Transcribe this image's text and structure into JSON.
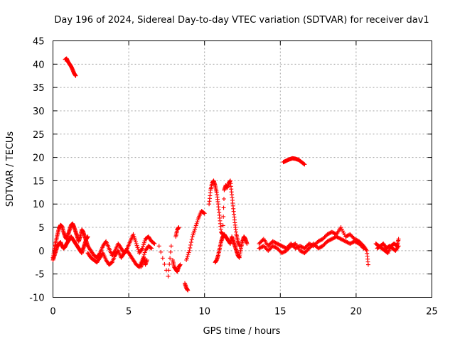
{
  "chart_data": {
    "type": "scatter",
    "title": "Day 196 of 2024, Sidereal Day-to-day VTEC variation (SDTVAR) for receiver dav1",
    "xlabel": "GPS time / hours",
    "ylabel": "SDTVAR / TECUs",
    "xlim": [
      0,
      25
    ],
    "ylim": [
      -10,
      45
    ],
    "xticks": [
      0,
      5,
      10,
      15,
      20,
      25
    ],
    "yticks": [
      -10,
      -5,
      0,
      5,
      10,
      15,
      20,
      25,
      30,
      35,
      40,
      45
    ],
    "grid": true,
    "marker": "+",
    "series": [
      {
        "name": "SDTVAR",
        "color": "#ff0000",
        "segments": [
          {
            "x": [
              0.0,
              0.1,
              0.2,
              0.3,
              0.4,
              0.5,
              0.6,
              0.7,
              0.8,
              0.9,
              1.0,
              1.1,
              1.2,
              1.3,
              1.4,
              1.5,
              1.6,
              1.7,
              1.8,
              1.9,
              2.0,
              2.1,
              2.2,
              2.3
            ],
            "y": [
              -1.5,
              0.5,
              2.0,
              3.5,
              4.8,
              5.5,
              5.2,
              4.0,
              3.0,
              2.5,
              3.5,
              4.5,
              5.5,
              5.8,
              5.0,
              4.0,
              3.0,
              2.0,
              3.0,
              4.5,
              4.0,
              3.0,
              2.0,
              1.0
            ]
          },
          {
            "x": [
              0.0,
              0.1,
              0.2,
              0.3,
              0.4,
              0.5,
              0.6,
              0.7,
              0.8,
              0.9,
              1.0,
              1.1,
              1.2,
              1.3,
              1.4,
              1.5,
              1.6,
              1.7,
              1.8,
              1.9,
              2.0,
              2.1,
              2.2,
              2.3
            ],
            "y": [
              -2.0,
              -1.0,
              0.0,
              1.0,
              1.5,
              1.8,
              1.0,
              0.5,
              0.8,
              1.5,
              2.0,
              2.5,
              3.0,
              2.5,
              2.0,
              1.5,
              1.0,
              0.5,
              0.0,
              -0.5,
              0.5,
              1.5,
              2.5,
              3.0
            ]
          },
          {
            "x": [
              0.8,
              0.9,
              1.0,
              1.1,
              1.2,
              1.3,
              1.4,
              1.5
            ],
            "y": [
              41.0,
              41.2,
              40.5,
              40.0,
              39.5,
              38.8,
              38.0,
              37.5
            ]
          },
          {
            "x": [
              2.3,
              2.5,
              2.7,
              2.9,
              3.1,
              3.3,
              3.5,
              3.7,
              3.9,
              4.1,
              4.3,
              4.5,
              4.7,
              4.9,
              5.1,
              5.3,
              5.5,
              5.7,
              5.9,
              6.1,
              6.3,
              6.5,
              6.7
            ],
            "y": [
              1.0,
              0.0,
              -1.0,
              -1.5,
              -0.5,
              1.0,
              2.0,
              0.5,
              -1.0,
              0.0,
              1.5,
              0.5,
              -0.5,
              0.5,
              2.0,
              3.5,
              1.5,
              -0.5,
              0.5,
              2.5,
              3.0,
              2.0,
              1.5
            ]
          },
          {
            "x": [
              2.3,
              2.5,
              2.7,
              2.9,
              3.1,
              3.3,
              3.5,
              3.7,
              3.9,
              4.1,
              4.3,
              4.5,
              4.7,
              4.9,
              5.1,
              5.3,
              5.5,
              5.7,
              5.9,
              6.1,
              6.3,
              6.5
            ],
            "y": [
              -0.5,
              -1.5,
              -2.0,
              -2.5,
              -1.5,
              -0.5,
              -2.0,
              -3.0,
              -2.5,
              -1.0,
              0.0,
              -1.5,
              -0.5,
              0.0,
              -1.0,
              -2.0,
              -3.0,
              -3.5,
              -2.0,
              0.0,
              1.0,
              0.5
            ]
          },
          {
            "x": [
              5.8,
              5.9,
              6.0,
              6.1,
              6.2
            ],
            "y": [
              -3.5,
              -2.5,
              -1.5,
              -3.0,
              -2.0
            ]
          },
          {
            "x": [
              7.0,
              7.6,
              7.8
            ],
            "y": [
              1.0,
              -5.5,
              1.0
            ]
          },
          {
            "x": [
              7.9,
              8.0,
              8.1,
              8.2,
              8.3,
              8.4
            ],
            "y": [
              -2.0,
              -3.5,
              -4.0,
              -4.5,
              -3.5,
              -3.0
            ]
          },
          {
            "x": [
              8.1,
              8.2,
              8.3
            ],
            "y": [
              3.0,
              4.5,
              5.0
            ]
          },
          {
            "x": [
              8.7,
              8.8,
              8.9
            ],
            "y": [
              -7.0,
              -8.0,
              -8.5
            ]
          },
          {
            "x": [
              8.8,
              9.0,
              9.2,
              9.4,
              9.6,
              9.8,
              10.0
            ],
            "y": [
              -2.0,
              0.0,
              3.0,
              5.0,
              7.0,
              8.5,
              8.0
            ]
          },
          {
            "x": [
              10.3,
              10.4,
              10.5,
              10.6,
              10.7,
              10.8,
              10.9,
              11.0,
              11.1,
              11.2,
              11.3,
              11.4,
              11.5,
              11.6,
              11.7,
              11.8,
              11.9,
              12.0,
              12.1,
              12.2,
              12.3
            ],
            "y": [
              10.0,
              13.0,
              14.5,
              15.0,
              14.0,
              12.5,
              10.0,
              7.0,
              4.0,
              3.5,
              13.0,
              14.0,
              13.5,
              14.5,
              15.0,
              12.0,
              9.0,
              6.0,
              3.5,
              2.0,
              1.0
            ]
          },
          {
            "x": [
              10.7,
              10.8,
              10.9,
              11.0,
              11.1,
              11.2,
              11.3,
              11.4,
              11.5,
              11.6,
              11.7,
              11.8,
              11.9,
              12.0,
              12.1,
              12.2,
              12.3,
              12.4,
              12.5,
              12.6,
              12.7,
              12.8
            ],
            "y": [
              -2.5,
              -2.0,
              -1.0,
              0.5,
              2.0,
              3.0,
              3.5,
              3.0,
              2.5,
              2.0,
              1.5,
              3.0,
              2.0,
              1.0,
              0.0,
              -1.0,
              -1.5,
              0.5,
              2.0,
              3.0,
              2.5,
              1.5
            ]
          },
          {
            "x": [
              13.6,
              13.9,
              14.2,
              14.5,
              14.8,
              15.1,
              15.4,
              15.7,
              16.0,
              16.3,
              16.6,
              16.9,
              17.2,
              17.5,
              17.8,
              18.1,
              18.4,
              18.7,
              19.0,
              19.3,
              19.6,
              19.9,
              20.2,
              20.5,
              20.7,
              20.8
            ],
            "y": [
              1.5,
              2.5,
              1.0,
              2.0,
              1.5,
              1.0,
              0.5,
              1.5,
              0.5,
              1.0,
              0.5,
              1.5,
              1.0,
              2.0,
              2.5,
              3.5,
              4.0,
              3.5,
              5.0,
              3.0,
              3.5,
              2.5,
              2.0,
              1.0,
              0.0,
              -3.0
            ]
          },
          {
            "x": [
              13.6,
              13.9,
              14.2,
              14.5,
              14.8,
              15.1,
              15.4,
              15.7,
              16.0,
              16.3,
              16.6,
              16.9,
              17.2,
              17.5,
              17.8,
              18.1,
              18.4,
              18.7,
              19.0,
              19.3,
              19.6,
              19.9,
              20.2,
              20.5
            ],
            "y": [
              0.5,
              1.0,
              0.0,
              1.0,
              0.5,
              -0.5,
              0.0,
              1.0,
              1.5,
              0.0,
              -0.5,
              0.5,
              1.5,
              0.5,
              1.0,
              2.0,
              2.5,
              3.0,
              2.5,
              2.0,
              1.5,
              2.0,
              1.5,
              0.5
            ]
          },
          {
            "x": [
              15.2,
              15.4,
              15.6,
              15.8,
              16.0,
              16.2,
              16.4,
              16.6
            ],
            "y": [
              19.0,
              19.3,
              19.6,
              19.8,
              19.7,
              19.5,
              19.0,
              18.5
            ]
          },
          {
            "x": [
              21.3,
              21.5,
              21.7,
              21.9,
              22.1,
              22.3,
              22.5,
              22.7,
              22.8
            ],
            "y": [
              1.5,
              1.0,
              0.5,
              0.0,
              -0.5,
              1.0,
              1.5,
              1.0,
              2.5
            ]
          },
          {
            "x": [
              21.4,
              21.6,
              21.8,
              22.0,
              22.2,
              22.4,
              22.6,
              22.8
            ],
            "y": [
              0.5,
              1.0,
              1.5,
              0.5,
              1.0,
              0.5,
              0.0,
              1.0
            ]
          }
        ]
      }
    ]
  }
}
